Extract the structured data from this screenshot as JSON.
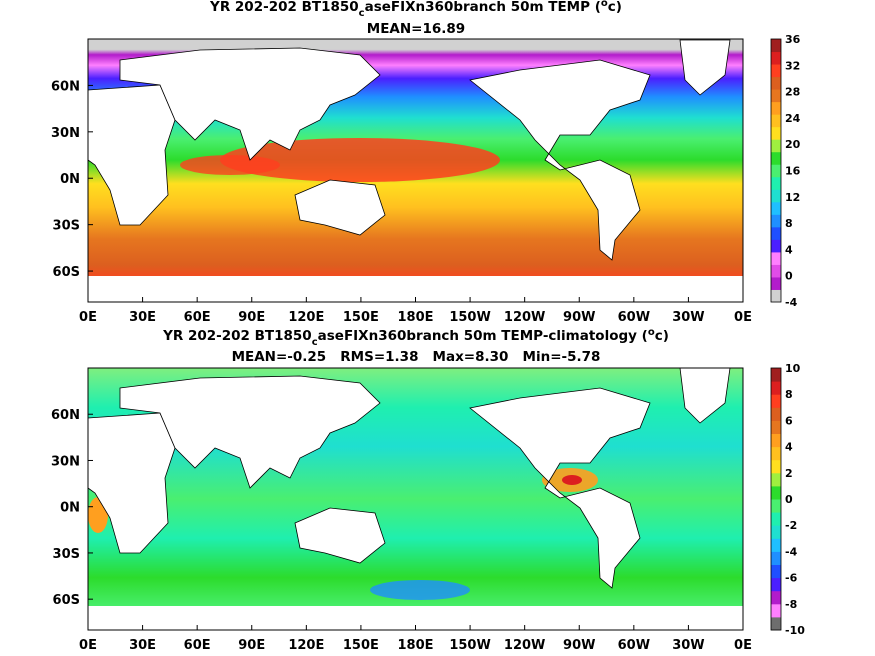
{
  "chart_data": [
    {
      "type": "heatmap",
      "title_parts": {
        "pre": "YR 202-202 BT1850",
        "sub": "c",
        "post": "aseFIXn360branch 50m TEMP (",
        "deg": "o",
        "unit": "c)"
      },
      "subtitle": "MEAN=16.89",
      "x_ticks": [
        "0E",
        "30E",
        "60E",
        "90E",
        "120E",
        "150E",
        "180E",
        "150W",
        "120W",
        "90W",
        "60W",
        "30W",
        "0E"
      ],
      "y_ticks": [
        "60N",
        "30N",
        "0N",
        "30S",
        "60S"
      ],
      "y_tick_lat": [
        60,
        30,
        0,
        -30,
        -60
      ],
      "lat_range": [
        -80,
        90
      ],
      "lon_range": [
        0,
        360
      ],
      "colorbar": {
        "labels": [
          "36",
          "32",
          "28",
          "24",
          "20",
          "16",
          "12",
          "8",
          "4",
          "0",
          "-4"
        ],
        "colors": [
          "#d1d1d1",
          "#b21ccb",
          "#e14ce8",
          "#ff7fff",
          "#4b1fff",
          "#1f4fff",
          "#1f8fff",
          "#1fbfff",
          "#1fdfd0",
          "#1fefaf",
          "#4aef70",
          "#2cdc2c",
          "#9fef3f",
          "#ffdf1f",
          "#ffc01f",
          "#ff9f1f",
          "#e6761f",
          "#dc5f1f",
          "#ff3f1f",
          "#dc1f1f",
          "#a01f1f"
        ]
      }
    },
    {
      "type": "heatmap",
      "title_parts": {
        "pre": "YR 202-202 BT1850",
        "sub": "c",
        "post": "aseFIXn360branch 50m TEMP-climatology (",
        "deg": "o",
        "unit": "c)"
      },
      "subtitle": "MEAN=-0.25   RMS=1.38   Max=8.30   Min=-5.78",
      "x_ticks": [
        "0E",
        "30E",
        "60E",
        "90E",
        "120E",
        "150E",
        "180E",
        "150W",
        "120W",
        "90W",
        "60W",
        "30W",
        "0E"
      ],
      "y_ticks": [
        "60N",
        "30N",
        "0N",
        "30S",
        "60S"
      ],
      "y_tick_lat": [
        60,
        30,
        0,
        -30,
        -60
      ],
      "lat_range": [
        -80,
        90
      ],
      "lon_range": [
        0,
        360
      ],
      "colorbar": {
        "labels": [
          "10",
          "8",
          "6",
          "4",
          "2",
          "0",
          "-2",
          "-4",
          "-6",
          "-8",
          "-10"
        ],
        "colors": [
          "#6e6e6e",
          "#ff7fff",
          "#b21ccb",
          "#4b1fff",
          "#1f4fff",
          "#1f8fff",
          "#1fbfff",
          "#1fdfd0",
          "#1fefaf",
          "#4aef70",
          "#2cdc2c",
          "#9fef3f",
          "#ffdf1f",
          "#ffc01f",
          "#ff9f1f",
          "#e6761f",
          "#dc5f1f",
          "#ff3f1f",
          "#dc1f1f",
          "#a01f1f"
        ]
      }
    }
  ]
}
